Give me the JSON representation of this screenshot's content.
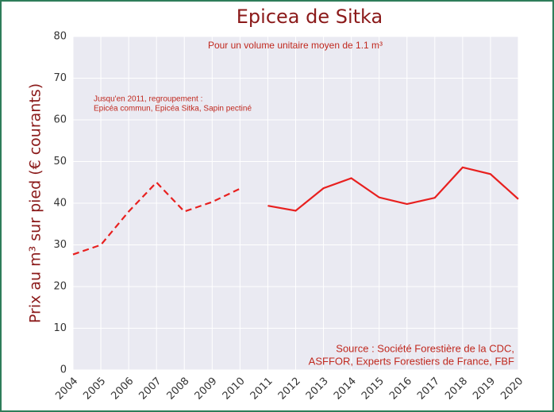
{
  "chart_data": {
    "type": "line",
    "title": "Epicea de Sitka",
    "subtitle": "Pour un volume unitaire moyen de 1.1 m³",
    "y_label": "Prix au m³ sur pied (€ courants)",
    "annotation": [
      "Jusqu'en 2011, regroupement :",
      "Epicéa commun, Epicéa Sitka, Sapin pectiné"
    ],
    "source": [
      "Source : Société Forestière de la CDC,",
      "ASFFOR, Experts Forestiers de France, FBF"
    ],
    "x": [
      2004,
      2005,
      2006,
      2007,
      2008,
      2009,
      2010,
      2011,
      2012,
      2013,
      2014,
      2015,
      2016,
      2017,
      2018,
      2019,
      2020
    ],
    "series": [
      {
        "color": "#e8201f",
        "style": "dashed",
        "values": [
          27.7,
          30,
          38,
          45,
          38,
          40.3,
          43.5,
          null,
          null,
          null,
          null,
          null,
          null,
          null,
          null,
          null,
          null
        ]
      },
      {
        "color": "#e8201f",
        "style": "solid",
        "values": [
          null,
          null,
          null,
          null,
          null,
          null,
          null,
          39.4,
          38.2,
          43.6,
          46,
          41.4,
          39.8,
          41.3,
          48.6,
          47,
          41
        ]
      }
    ],
    "xlim": [
      2004,
      2020
    ],
    "xticks": [
      2004,
      2005,
      2006,
      2007,
      2008,
      2009,
      2010,
      2011,
      2012,
      2013,
      2014,
      2015,
      2016,
      2017,
      2018,
      2019,
      2020
    ],
    "ylim": [
      0,
      80
    ],
    "yticks": [
      0,
      10,
      20,
      30,
      40,
      50,
      60,
      70,
      80
    ],
    "grid": true
  }
}
